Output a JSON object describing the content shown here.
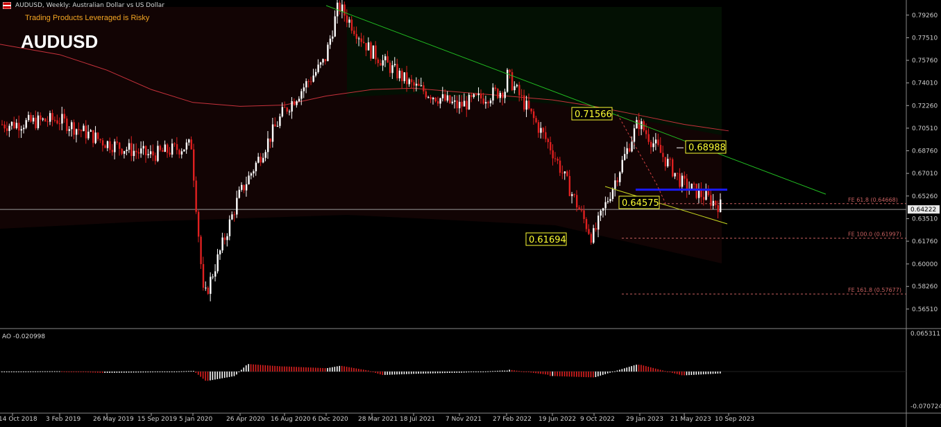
{
  "header": {
    "symbol_line": "AUDUSD, Weekly:  Australian Dollar vs US Dollar",
    "warning": "Trading Products Leveraged is Risky",
    "big_symbol": "AUDUSD",
    "warning_color": "#f5a623"
  },
  "indicator": {
    "label": "AO -0.020998",
    "axis_top": "0.065311",
    "axis_bottom": "-0.070724"
  },
  "colors": {
    "background": "#000000",
    "bull_candle": "#ffffff",
    "bear_candle": "#e02020",
    "ma_line": "#c8323c",
    "trendline_upper": "#22c022",
    "trendline_lower": "#c8d820",
    "support_line": "#1a1aff",
    "label_bg": "#ffff33",
    "fe_line": "#c86060"
  },
  "chart_data": {
    "type": "candlestick",
    "title": "AUDUSD, Weekly:  Australian Dollar vs US Dollar",
    "y_ticks": [
      "0.79260",
      "0.77510",
      "0.75760",
      "0.74010",
      "0.72260",
      "0.70510",
      "0.68760",
      "0.67010",
      "0.65260",
      "0.63510",
      "0.61760",
      "0.60000",
      "0.58260",
      "0.56510"
    ],
    "x_ticks": [
      "14 Oct 2018",
      "3 Feb 2019",
      "26 May 2019",
      "15 Sep 2019",
      "5 Jan 2020",
      "26 Apr 2020",
      "16 Aug 2020",
      "6 Dec 2020",
      "28 Mar 2021",
      "18 Jul 2021",
      "7 Nov 2021",
      "27 Feb 2022",
      "19 Jun 2022",
      "9 Oct 2022",
      "29 Jan 2023",
      "21 May 2023",
      "10 Sep 2023"
    ],
    "current_price": "0.64222",
    "price_path": [
      [
        "14 Oct 2018",
        0.708
      ],
      [
        "3 Feb 2019",
        0.712
      ],
      [
        "26 May 2019",
        0.694
      ],
      [
        "15 Sep 2019",
        0.684
      ],
      [
        "5 Jan 2020",
        0.692
      ],
      [
        "20 Mar 2020",
        0.572
      ],
      [
        "26 Apr 2020",
        0.652
      ],
      [
        "16 Aug 2020",
        0.717
      ],
      [
        "6 Dec 2020",
        0.757
      ],
      [
        "25 Feb 2021",
        0.8
      ],
      [
        "28 Mar 2021",
        0.765
      ],
      [
        "18 Jul 2021",
        0.738
      ],
      [
        "7 Nov 2021",
        0.722
      ],
      [
        "27 Feb 2022",
        0.735
      ],
      [
        "5 Apr 2022",
        0.756
      ],
      [
        "19 Jun 2022",
        0.69
      ],
      [
        "9 Oct 2022",
        0.62
      ],
      [
        "29 Jan 2023",
        0.71
      ],
      [
        "21 May 2023",
        0.662
      ],
      [
        "10 Sep 2023",
        0.642
      ]
    ],
    "moving_average": [
      0.77,
      0.762,
      0.75,
      0.735,
      0.725,
      0.722,
      0.723,
      0.73,
      0.735,
      0.736,
      0.733,
      0.73,
      0.727,
      0.722,
      0.715,
      0.708,
      0.703
    ],
    "swing_labels": [
      {
        "date": "29 Jan 2023",
        "price": 0.71566,
        "text": "0.71566"
      },
      {
        "date": "21 May 2023",
        "price": 0.68988,
        "text": "0.68988"
      },
      {
        "date": "29 Jan 2023",
        "price": 0.64575,
        "text": "0.64575"
      },
      {
        "date": "9 Oct 2022",
        "price": 0.61694,
        "text": "0.61694"
      }
    ],
    "fibonacci_extensions": [
      {
        "label": "FE 61.8  (0.64668)",
        "price": 0.64668
      },
      {
        "label": "FE 100.0 (0.61997)",
        "price": 0.61997
      },
      {
        "label": "FE 161.8 (0.57677)",
        "price": 0.57677
      }
    ],
    "support_level": 0.6575,
    "upper_trendline": [
      [
        "6 Dec 2020",
        0.8
      ],
      [
        "10 Sep 2023",
        0.7
      ]
    ],
    "lower_trendline": [
      [
        "29 Jan 2023",
        0.6575
      ],
      [
        "10 Sep 2023",
        0.632
      ]
    ],
    "ao_indicator": {
      "name": "AO",
      "last_value": -0.020998,
      "ylim": [
        -0.070724,
        0.065311
      ]
    }
  }
}
